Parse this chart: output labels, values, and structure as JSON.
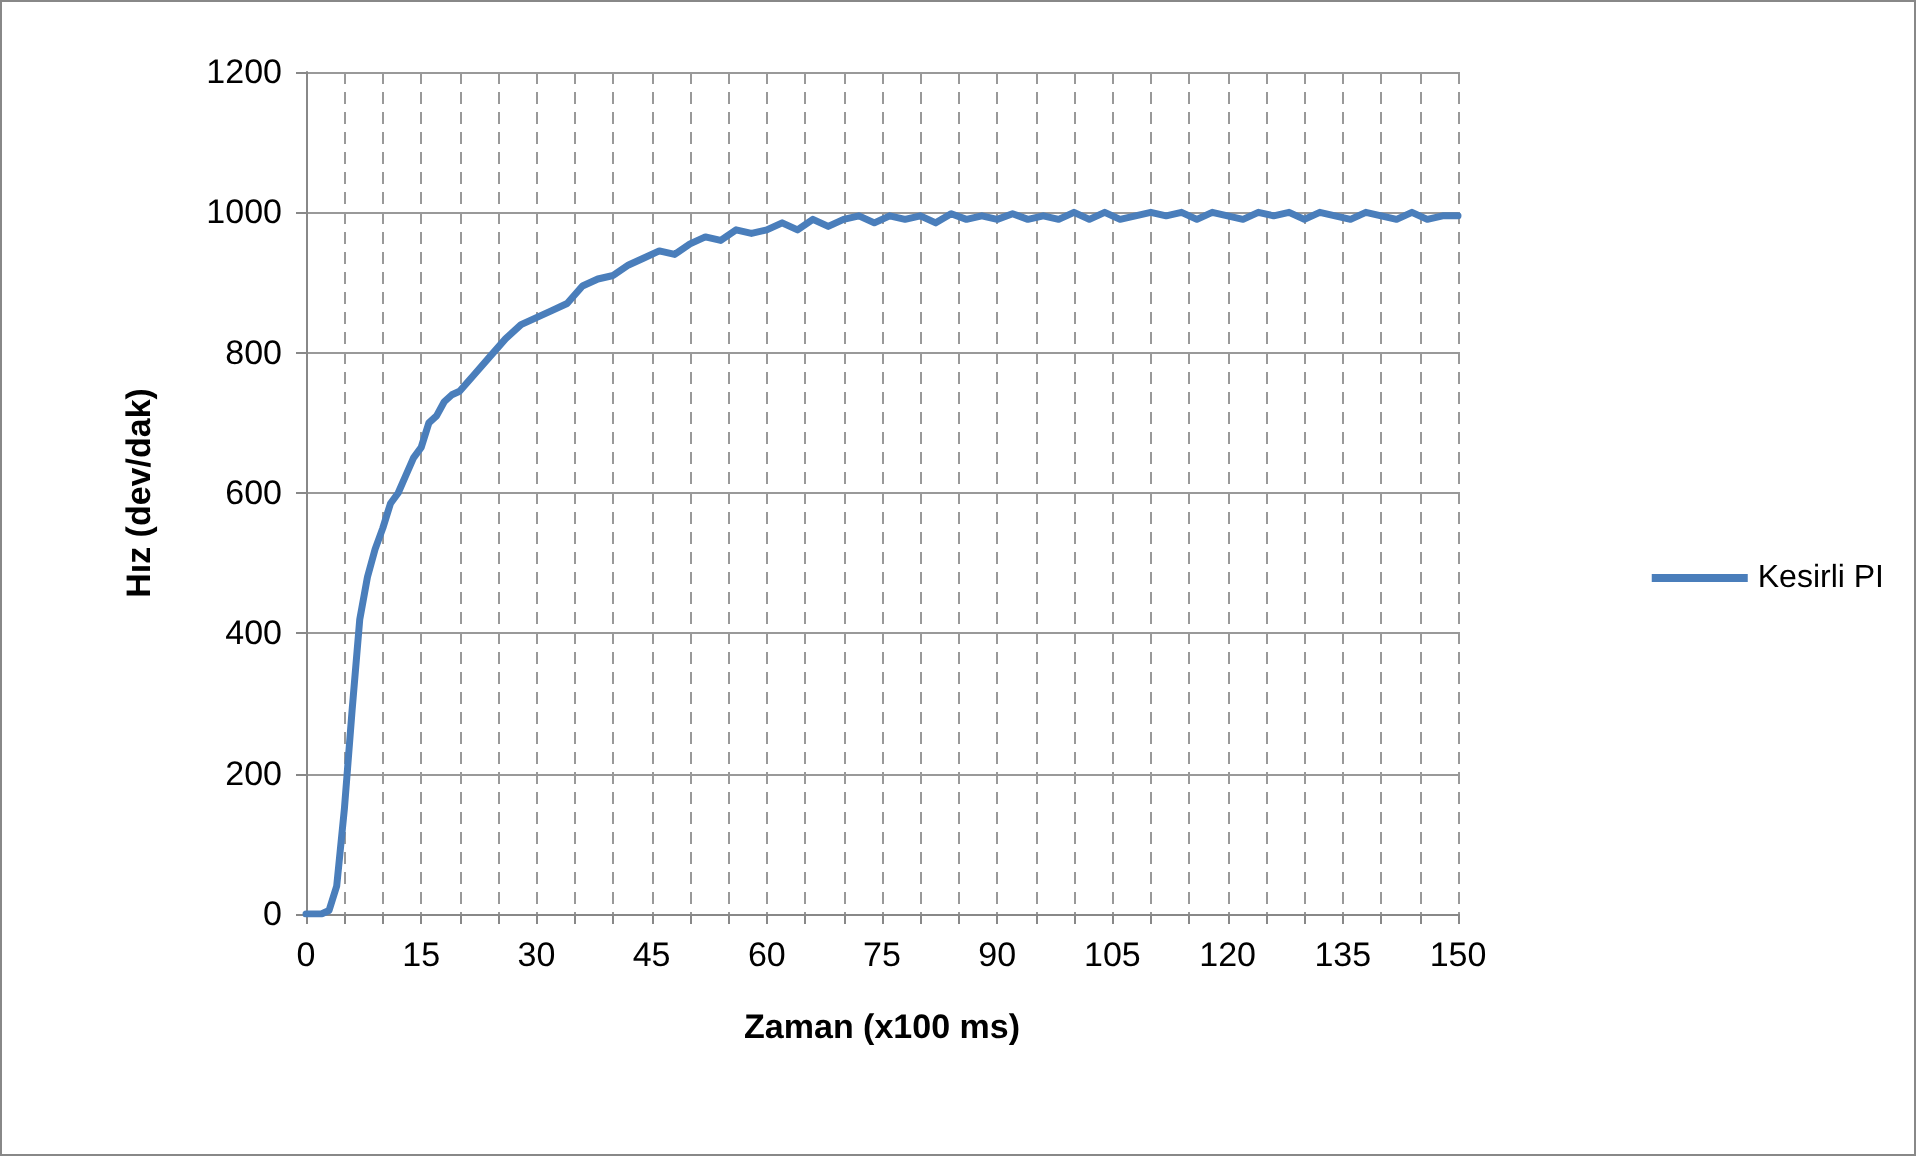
{
  "chart_data": {
    "type": "line",
    "xlabel": "Zaman (x100 ms)",
    "ylabel": "Hız (dev/dak)",
    "xlim": [
      0,
      150
    ],
    "ylim": [
      0,
      1200
    ],
    "xticks": [
      0,
      {
        "value": 5,
        "label": null
      },
      {
        "value": 10,
        "label": null
      },
      15,
      {
        "value": 20,
        "label": null
      },
      {
        "value": 25,
        "label": null
      },
      30,
      {
        "value": 35,
        "label": null
      },
      {
        "value": 40,
        "label": null
      },
      45,
      {
        "value": 50,
        "label": null
      },
      {
        "value": 55,
        "label": null
      },
      60,
      {
        "value": 65,
        "label": null
      },
      {
        "value": 70,
        "label": null
      },
      75,
      {
        "value": 80,
        "label": null
      },
      {
        "value": 85,
        "label": null
      },
      90,
      {
        "value": 95,
        "label": null
      },
      {
        "value": 100,
        "label": null
      },
      105,
      {
        "value": 110,
        "label": null
      },
      {
        "value": 115,
        "label": null
      },
      120,
      {
        "value": 125,
        "label": null
      },
      {
        "value": 130,
        "label": null
      },
      135,
      {
        "value": 140,
        "label": null
      },
      {
        "value": 145,
        "label": null
      },
      150
    ],
    "yticks": [
      0,
      200,
      400,
      600,
      800,
      1000,
      1200
    ],
    "grid": true,
    "legend": "right",
    "marker": "none",
    "line_style": "solid",
    "series": [
      {
        "name": "Kesirli PI",
        "color": "#4a7ebb",
        "x": [
          0,
          2,
          3,
          4,
          5,
          6,
          7,
          8,
          9,
          10,
          11,
          12,
          13,
          14,
          15,
          16,
          17,
          18,
          19,
          20,
          22,
          24,
          26,
          28,
          30,
          32,
          34,
          36,
          38,
          40,
          42,
          44,
          46,
          48,
          50,
          52,
          54,
          56,
          58,
          60,
          62,
          64,
          66,
          68,
          70,
          72,
          74,
          76,
          78,
          80,
          82,
          84,
          86,
          88,
          90,
          92,
          94,
          96,
          98,
          100,
          102,
          104,
          106,
          108,
          110,
          112,
          114,
          116,
          118,
          120,
          122,
          124,
          126,
          128,
          130,
          132,
          134,
          136,
          138,
          140,
          142,
          144,
          146,
          148,
          150
        ],
        "values": [
          0,
          0,
          5,
          40,
          150,
          290,
          420,
          480,
          520,
          550,
          585,
          600,
          625,
          650,
          665,
          700,
          710,
          730,
          740,
          745,
          770,
          795,
          820,
          840,
          850,
          860,
          870,
          895,
          905,
          910,
          925,
          935,
          945,
          940,
          955,
          965,
          960,
          975,
          970,
          975,
          985,
          975,
          990,
          980,
          990,
          995,
          985,
          995,
          990,
          995,
          985,
          998,
          990,
          995,
          990,
          998,
          990,
          995,
          990,
          1000,
          990,
          1000,
          990,
          995,
          1000,
          995,
          1000,
          990,
          1000,
          995,
          990,
          1000,
          995,
          1000,
          990,
          1000,
          995,
          990,
          1000,
          995,
          990,
          1000,
          990,
          995,
          995
        ]
      }
    ]
  }
}
